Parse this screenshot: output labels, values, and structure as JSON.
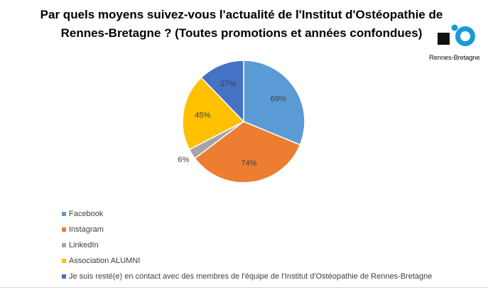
{
  "chart_data": {
    "type": "pie",
    "title": "Par quels moyens suivez-vous l'actualité de l'Institut d'Ostéopathie de Rennes-Bretagne ? (Toutes promotions et années confondues)",
    "categories": [
      "Facebook",
      "Instagram",
      "LinkedIn",
      "Association ALUMNI",
      "Je suis resté(e) en contact avec des membres de l'équipe de l'Institut d'Ostéopathie de Rennes-Bretagne"
    ],
    "values": [
      69,
      74,
      6,
      45,
      27
    ],
    "labels": [
      "69%",
      "74%",
      "6%",
      "45%",
      "27%"
    ],
    "colors": [
      "#5b9bd5",
      "#ed7d31",
      "#a5a5a5",
      "#ffc000",
      "#4472c4"
    ],
    "legend_position": "bottom-left"
  },
  "logo": {
    "text": "Rennes-Bretagne",
    "colors": [
      "#111111",
      "#1a9ad6"
    ]
  }
}
